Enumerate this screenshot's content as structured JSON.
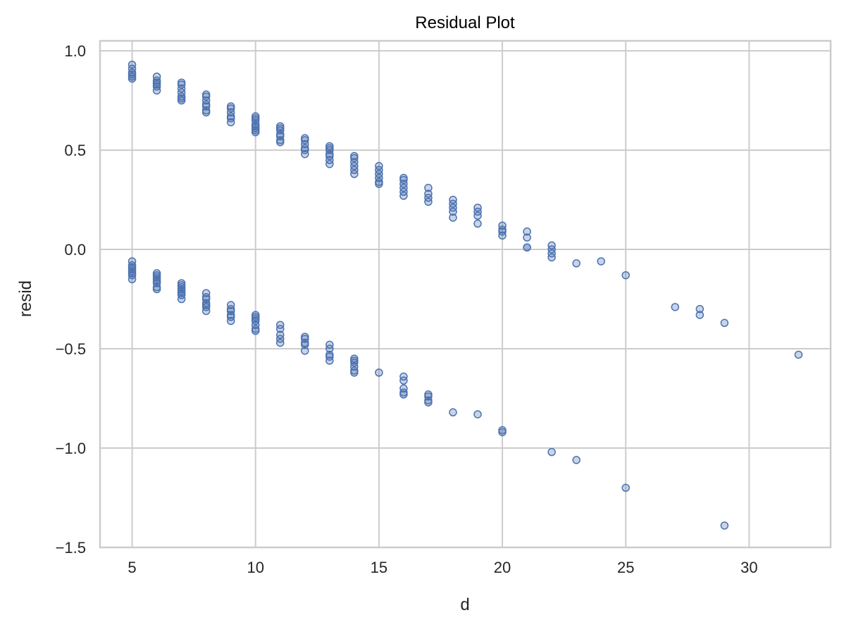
{
  "chart_data": {
    "type": "scatter",
    "title": "Residual Plot",
    "xlabel": "d",
    "ylabel": "resid",
    "xlim": [
      3.7,
      33.3
    ],
    "ylim": [
      -1.5,
      1.05
    ],
    "xticks": [
      5,
      10,
      15,
      20,
      25,
      30
    ],
    "yticks": [
      -1.5,
      -1.0,
      -0.5,
      0.0,
      0.5,
      1.0
    ],
    "ytick_labels": [
      "−1.5",
      "−1.0",
      "−0.5",
      "0.0",
      "0.5",
      "1.0"
    ],
    "grid": true,
    "colors": {
      "marker": "#4c72b0",
      "grid": "#cccccc",
      "frame": "#cccccc"
    },
    "series": [
      {
        "x": [
          5,
          5,
          5,
          5,
          5,
          5,
          6,
          6,
          6,
          6,
          6,
          6,
          7,
          7,
          7,
          7,
          7,
          7,
          7,
          8,
          8,
          8,
          8,
          8,
          8,
          8,
          9,
          9,
          9,
          9,
          9,
          9,
          10,
          10,
          10,
          10,
          10,
          10,
          10,
          10,
          11,
          11,
          11,
          11,
          11,
          11,
          11,
          12,
          12,
          12,
          12,
          12,
          12,
          13,
          13,
          13,
          13,
          13,
          13,
          13,
          14,
          14,
          14,
          14,
          14,
          14,
          15,
          15,
          15,
          15,
          15,
          15,
          16,
          16,
          16,
          16,
          16,
          16,
          17,
          17,
          17,
          17,
          18,
          18,
          18,
          18,
          18,
          19,
          19,
          19,
          19,
          20,
          20,
          20,
          20,
          21,
          21,
          21,
          21,
          22,
          22,
          22,
          22,
          23,
          24,
          25,
          27,
          28,
          28,
          29,
          32,
          5,
          5,
          5,
          5,
          5,
          5,
          5,
          5,
          6,
          6,
          6,
          6,
          6,
          6,
          6,
          6,
          7,
          7,
          7,
          7,
          7,
          7,
          7,
          7,
          8,
          8,
          8,
          8,
          8,
          8,
          8,
          9,
          9,
          9,
          9,
          9,
          9,
          10,
          10,
          10,
          10,
          10,
          10,
          10,
          11,
          11,
          11,
          11,
          11,
          12,
          12,
          12,
          12,
          12,
          13,
          13,
          13,
          13,
          13,
          14,
          14,
          14,
          14,
          14,
          14,
          15,
          16,
          16,
          16,
          16,
          16,
          17,
          17,
          17,
          17,
          18,
          19,
          20,
          20,
          22,
          23,
          25,
          29
        ],
        "y": [
          0.93,
          0.91,
          0.89,
          0.88,
          0.87,
          0.86,
          0.87,
          0.85,
          0.84,
          0.83,
          0.82,
          0.8,
          0.84,
          0.83,
          0.81,
          0.79,
          0.77,
          0.76,
          0.75,
          0.78,
          0.77,
          0.75,
          0.73,
          0.72,
          0.7,
          0.69,
          0.72,
          0.71,
          0.69,
          0.67,
          0.66,
          0.64,
          0.67,
          0.66,
          0.65,
          0.63,
          0.62,
          0.61,
          0.6,
          0.59,
          0.62,
          0.61,
          0.6,
          0.58,
          0.57,
          0.55,
          0.54,
          0.56,
          0.55,
          0.53,
          0.51,
          0.5,
          0.48,
          0.52,
          0.51,
          0.5,
          0.48,
          0.47,
          0.45,
          0.43,
          0.47,
          0.46,
          0.44,
          0.42,
          0.4,
          0.38,
          0.42,
          0.4,
          0.38,
          0.36,
          0.34,
          0.33,
          0.36,
          0.35,
          0.33,
          0.31,
          0.29,
          0.27,
          0.31,
          0.28,
          0.26,
          0.24,
          0.25,
          0.23,
          0.21,
          0.19,
          0.16,
          0.21,
          0.19,
          0.17,
          0.13,
          0.12,
          0.1,
          0.09,
          0.07,
          0.09,
          0.06,
          0.01,
          0.01,
          0.02,
          -0.0,
          -0.02,
          -0.04,
          -0.07,
          -0.06,
          -0.13,
          -0.29,
          -0.3,
          -0.33,
          -0.37,
          -0.53,
          -0.06,
          -0.08,
          -0.09,
          -0.1,
          -0.11,
          -0.12,
          -0.13,
          -0.15,
          -0.12,
          -0.13,
          -0.14,
          -0.15,
          -0.16,
          -0.17,
          -0.19,
          -0.2,
          -0.17,
          -0.18,
          -0.19,
          -0.2,
          -0.21,
          -0.22,
          -0.23,
          -0.25,
          -0.22,
          -0.24,
          -0.25,
          -0.27,
          -0.28,
          -0.29,
          -0.31,
          -0.28,
          -0.3,
          -0.31,
          -0.33,
          -0.34,
          -0.36,
          -0.33,
          -0.34,
          -0.35,
          -0.36,
          -0.38,
          -0.4,
          -0.41,
          -0.38,
          -0.4,
          -0.43,
          -0.45,
          -0.47,
          -0.44,
          -0.45,
          -0.47,
          -0.48,
          -0.51,
          -0.48,
          -0.5,
          -0.53,
          -0.54,
          -0.56,
          -0.55,
          -0.56,
          -0.57,
          -0.59,
          -0.61,
          -0.62,
          -0.62,
          -0.64,
          -0.66,
          -0.7,
          -0.72,
          -0.73,
          -0.73,
          -0.74,
          -0.76,
          -0.77,
          -0.82,
          -0.83,
          -0.91,
          -0.92,
          -1.02,
          -1.06,
          -1.2,
          -1.39
        ]
      }
    ]
  }
}
